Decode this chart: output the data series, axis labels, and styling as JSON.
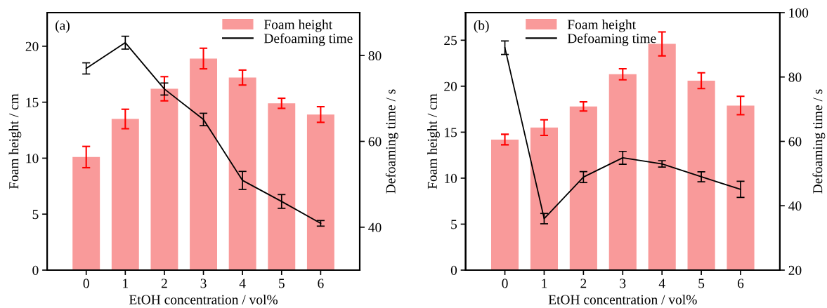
{
  "chart_data": [
    {
      "type": "bar",
      "annotations": [
        "(a)"
      ],
      "xlabel": "EtOH concentration / vol%",
      "ylabel": "Foam height / cm",
      "y2label": "Defoaming time / s",
      "categories": [
        "0",
        "1",
        "2",
        "3",
        "4",
        "5",
        "6"
      ],
      "series": [
        {
          "name": "Foam height",
          "color": "#f99a9a",
          "values": [
            10.1,
            13.5,
            16.2,
            18.9,
            17.2,
            14.9,
            13.9
          ],
          "errors": [
            0.95,
            0.87,
            1.08,
            0.92,
            0.67,
            0.45,
            0.7
          ]
        },
        {
          "name": "Defoaming time",
          "type": "line",
          "axis": "y2",
          "color": "#000000",
          "values": [
            77.0,
            83.0,
            72.2,
            65.1,
            50.9,
            46.0,
            40.9
          ],
          "errors": [
            1.3,
            1.5,
            1.4,
            1.45,
            2.1,
            1.6,
            0.65
          ]
        }
      ],
      "ylim": [
        0,
        23
      ],
      "yticks": [
        0,
        5,
        10,
        15,
        20
      ],
      "y2lim": [
        30,
        90
      ],
      "y2ticks": [
        40,
        60,
        80
      ],
      "legend": "top right",
      "grid": false,
      "marker": "none",
      "line_style": "solid"
    },
    {
      "type": "bar",
      "annotations": [
        "(b)"
      ],
      "xlabel": "EtOH concentration / vol%",
      "ylabel": "Foam height / cm",
      "y2label": "Defoaming time / s",
      "categories": [
        "0",
        "1",
        "2",
        "3",
        "4",
        "5",
        "6"
      ],
      "series": [
        {
          "name": "Foam height",
          "color": "#f99a9a",
          "values": [
            14.2,
            15.5,
            17.8,
            21.3,
            24.6,
            20.6,
            17.9
          ],
          "errors": [
            0.57,
            0.85,
            0.5,
            0.6,
            1.3,
            0.86,
            1.0
          ]
        },
        {
          "name": "Defoaming time",
          "type": "line",
          "axis": "y2",
          "color": "#000000",
          "values": [
            89.1,
            36.0,
            48.9,
            54.9,
            53.0,
            49.0,
            45.1
          ],
          "errors": [
            2.1,
            1.6,
            1.7,
            2.0,
            1.0,
            1.55,
            2.5
          ]
        }
      ],
      "ylim": [
        0,
        28
      ],
      "yticks": [
        0,
        5,
        10,
        15,
        20,
        25
      ],
      "y2lim": [
        20,
        100
      ],
      "y2ticks": [
        20,
        40,
        60,
        80,
        100
      ],
      "legend": "top",
      "grid": false,
      "marker": "none",
      "line_style": "solid"
    }
  ]
}
